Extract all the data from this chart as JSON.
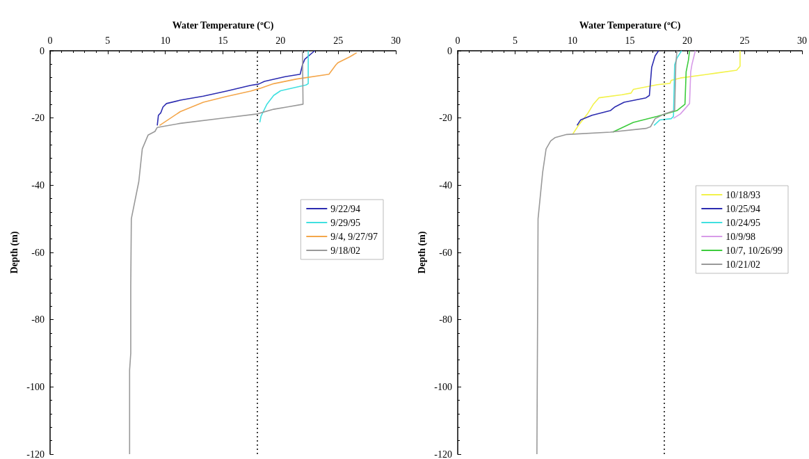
{
  "chart_data": [
    {
      "type": "line",
      "xlabel": "Water Temperature ($^{o}$C)",
      "ylabel": "Depth (m)",
      "xlim": [
        0,
        30
      ],
      "xticks": [
        0,
        5,
        10,
        15,
        20,
        25,
        30
      ],
      "ylim": [
        -120,
        0
      ],
      "yticks": [
        -120,
        -100,
        -80,
        -60,
        -40,
        -20,
        0
      ],
      "legend": "right",
      "ref_lines": [
        {
          "axis": "x",
          "value": 18,
          "color": "#000000",
          "line_style": "dotted"
        }
      ],
      "series": [
        {
          "name": "9/22/94",
          "color": "#2b2bb0",
          "x": [
            22.96,
            22.1,
            21.9,
            21.7,
            20.4,
            18.6,
            18.1,
            17.4,
            15.3,
            13.3,
            11.3,
            10.1,
            9.8,
            9.6,
            9.4,
            9.3
          ],
          "values": [
            0,
            -2.5,
            -4.2,
            -7.0,
            -7.7,
            -9.1,
            -9.9,
            -10.3,
            -12.0,
            -13.5,
            -14.7,
            -15.7,
            -16.7,
            -18.5,
            -19.2,
            -22.2
          ]
        },
        {
          "name": "9/29/95",
          "color": "#40e0e0",
          "x": [
            22.4,
            22.4,
            22.2,
            20.0,
            19.4,
            18.8,
            18.3,
            18.2
          ],
          "values": [
            0,
            -9.8,
            -10.2,
            -11.9,
            -13.3,
            -16.0,
            -19.5,
            -21.3
          ]
        },
        {
          "name": "9/4, 9/27/97",
          "color": "#f4a64a",
          "x": [
            26.6,
            26.0,
            25.0,
            24.8,
            24.2,
            21.4,
            19.4,
            18.2,
            17.4,
            15.3,
            13.3,
            11.3,
            9.5
          ],
          "values": [
            -0.6,
            -1.8,
            -3.5,
            -4.2,
            -7.0,
            -8.4,
            -9.8,
            -11.2,
            -12.0,
            -13.6,
            -15.3,
            -18.1,
            -22.2
          ]
        },
        {
          "name": "9/18/02",
          "color": "#999999",
          "x": [
            21.9,
            21.95,
            20.6,
            19.4,
            17.96,
            15.3,
            11.3,
            9.3,
            9.1,
            8.5,
            8.0,
            7.7,
            7.05,
            7.0,
            7.0,
            6.9,
            6.9
          ],
          "values": [
            0,
            -15.9,
            -16.7,
            -17.4,
            -18.8,
            -19.9,
            -21.6,
            -22.8,
            -24.0,
            -25.1,
            -29.2,
            -38.9,
            -50,
            -70,
            -90,
            -95,
            -120
          ]
        }
      ]
    },
    {
      "type": "line",
      "xlabel": "Water Temperature ($^{o}$C)",
      "ylabel": "Depth (m)",
      "xlim": [
        0,
        30
      ],
      "xticks": [
        0,
        5,
        10,
        15,
        20,
        25,
        30
      ],
      "ylim": [
        -120,
        0
      ],
      "yticks": [
        -120,
        -100,
        -80,
        -60,
        -40,
        -20,
        0
      ],
      "legend": "right",
      "ref_lines": [
        {
          "axis": "x",
          "value": 18,
          "color": "#000000",
          "line_style": "dotted"
        }
      ],
      "series": [
        {
          "name": "10/18/93",
          "color": "#f2f24a",
          "x": [
            24.6,
            24.6,
            24.3,
            22.4,
            19.4,
            18.6,
            18.5,
            17.4,
            15.3,
            15.1,
            14.3,
            12.3,
            11.8,
            11.3,
            10.5,
            10.0
          ],
          "values": [
            0,
            -4.6,
            -5.8,
            -6.7,
            -8.1,
            -8.8,
            -9.7,
            -10.1,
            -11.5,
            -12.6,
            -13.1,
            -14.0,
            -16.0,
            -18.8,
            -22.3,
            -24.9
          ]
        },
        {
          "name": "10/25/94",
          "color": "#2b2bb0",
          "x": [
            17.5,
            17.2,
            16.9,
            16.7,
            16.4,
            14.5,
            13.7,
            13.3,
            11.7,
            10.7,
            10.4
          ],
          "values": [
            0,
            -1.5,
            -4.9,
            -13.3,
            -14.0,
            -15.3,
            -16.7,
            -17.8,
            -19.2,
            -20.6,
            -22.2
          ]
        },
        {
          "name": "10/24/95",
          "color": "#40e0e0",
          "x": [
            19.5,
            19.1,
            18.9,
            18.8,
            18.6,
            17.6,
            17.1
          ],
          "values": [
            0,
            -2.2,
            -4.2,
            -19.5,
            -20.2,
            -20.6,
            -22.2
          ]
        },
        {
          "name": "10/9/98",
          "color": "#d79be8",
          "x": [
            20.7,
            20.4,
            20.3,
            20.2,
            19.4,
            18.8
          ],
          "values": [
            0,
            -4.2,
            -6.3,
            -15.7,
            -18.8,
            -20.1
          ]
        },
        {
          "name": "10/7, 10/26/99",
          "color": "#3ccc3c",
          "x": [
            20.2,
            20.1,
            19.9,
            19.8,
            19.1,
            17.4,
            15.3,
            13.5
          ],
          "values": [
            0,
            -2.8,
            -6.3,
            -15.9,
            -17.8,
            -19.5,
            -21.3,
            -24.2
          ]
        },
        {
          "name": "10/21/02",
          "color": "#999999",
          "x": [
            19.1,
            19.0,
            18.9,
            18.0,
            17.2,
            16.8,
            16.4,
            13.3,
            9.5,
            8.5,
            8.1,
            7.7,
            7.4,
            7.0,
            6.9
          ],
          "values": [
            0,
            -4.2,
            -17.8,
            -18.8,
            -20.2,
            -22.6,
            -23.1,
            -24.2,
            -24.9,
            -25.8,
            -26.8,
            -29.2,
            -36.2,
            -50,
            -120
          ]
        }
      ]
    }
  ]
}
